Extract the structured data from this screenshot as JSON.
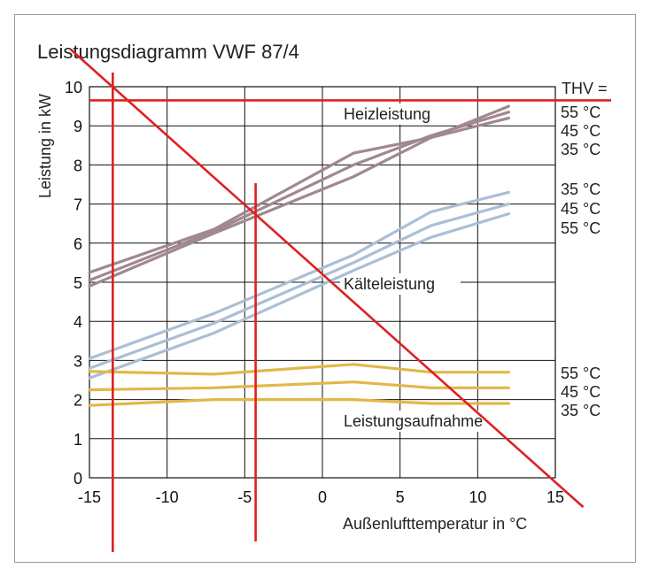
{
  "title": "Leistungsdiagramm VWF 87/4",
  "chart_data": {
    "type": "line",
    "title": "Leistungsdiagramm VWF 87/4",
    "xlabel": "Außenlufttemperatur in °C",
    "ylabel": "Leistung in kW",
    "xlim": [
      -15,
      15
    ],
    "ylim": [
      0,
      10
    ],
    "xticks": [
      -15,
      -10,
      -5,
      0,
      5,
      10,
      15
    ],
    "xtick_labels": [
      "-15",
      "-10",
      "-5",
      "0",
      "5",
      "10",
      "15"
    ],
    "yticks": [
      0,
      1,
      2,
      3,
      4,
      5,
      6,
      7,
      8,
      9,
      10
    ],
    "grid": true,
    "thv_label": "THV =",
    "groups": [
      {
        "label": "Heizleistung",
        "color": "#a08890"
      },
      {
        "label": "Kälteleistung",
        "color": "#aabfd6"
      },
      {
        "label": "Leistungsaufnahme",
        "color": "#e0b84a"
      }
    ],
    "series": [
      {
        "group": "Heizleistung",
        "name": "55 °C",
        "color": "#a08890",
        "points": [
          [
            -15,
            4.9
          ],
          [
            -7,
            6.25
          ],
          [
            2,
            7.7
          ],
          [
            7,
            8.7
          ],
          [
            12,
            9.5
          ]
        ]
      },
      {
        "group": "Heizleistung",
        "name": "45 °C",
        "color": "#a08890",
        "points": [
          [
            -15,
            5.05
          ],
          [
            -7,
            6.3
          ],
          [
            2,
            8.0
          ],
          [
            7,
            8.75
          ],
          [
            12,
            9.35
          ]
        ]
      },
      {
        "group": "Heizleistung",
        "name": "35 °C",
        "color": "#a08890",
        "points": [
          [
            -15,
            5.25
          ],
          [
            -7,
            6.35
          ],
          [
            2,
            8.3
          ],
          [
            7,
            8.7
          ],
          [
            12,
            9.2
          ]
        ]
      },
      {
        "group": "Kälteleistung",
        "name": "35 °C",
        "color": "#aabfd6",
        "points": [
          [
            -15,
            3.05
          ],
          [
            -7,
            4.2
          ],
          [
            2,
            5.7
          ],
          [
            7,
            6.8
          ],
          [
            12,
            7.3
          ]
        ]
      },
      {
        "group": "Kälteleistung",
        "name": "45 °C",
        "color": "#aabfd6",
        "points": [
          [
            -15,
            2.8
          ],
          [
            -7,
            3.95
          ],
          [
            2,
            5.5
          ],
          [
            7,
            6.45
          ],
          [
            12,
            7.0
          ]
        ]
      },
      {
        "group": "Kälteleistung",
        "name": "55 °C",
        "color": "#aabfd6",
        "points": [
          [
            -15,
            2.55
          ],
          [
            -7,
            3.7
          ],
          [
            2,
            5.3
          ],
          [
            7,
            6.15
          ],
          [
            12,
            6.75
          ]
        ]
      },
      {
        "group": "Leistungsaufnahme",
        "name": "55 °C",
        "color": "#e0b84a",
        "points": [
          [
            -15,
            2.72
          ],
          [
            -7,
            2.65
          ],
          [
            2,
            2.9
          ],
          [
            7,
            2.7
          ],
          [
            12,
            2.7
          ]
        ]
      },
      {
        "group": "Leistungsaufnahme",
        "name": "45 °C",
        "color": "#e0b84a",
        "points": [
          [
            -15,
            2.25
          ],
          [
            -7,
            2.3
          ],
          [
            2,
            2.45
          ],
          [
            7,
            2.3
          ],
          [
            12,
            2.3
          ]
        ]
      },
      {
        "group": "Leistungsaufnahme",
        "name": "35 °C",
        "color": "#e0b84a",
        "points": [
          [
            -15,
            1.85
          ],
          [
            -7,
            2.0
          ],
          [
            2,
            2.0
          ],
          [
            7,
            1.9
          ],
          [
            12,
            1.9
          ]
        ]
      }
    ],
    "right_labels": [
      "55 °C",
      "45 °C",
      "35 °C",
      "35 °C",
      "45 °C",
      "55 °C",
      "55 °C",
      "45 °C",
      "35 °C"
    ],
    "annotations": {
      "color": "#e02020",
      "horizontal_y": 9.65,
      "vertical_x": [
        -13.5,
        -4.3
      ],
      "diagonal": [
        [
          -16.2,
          10.95
        ],
        [
          16.8,
          -0.75
        ]
      ]
    }
  }
}
